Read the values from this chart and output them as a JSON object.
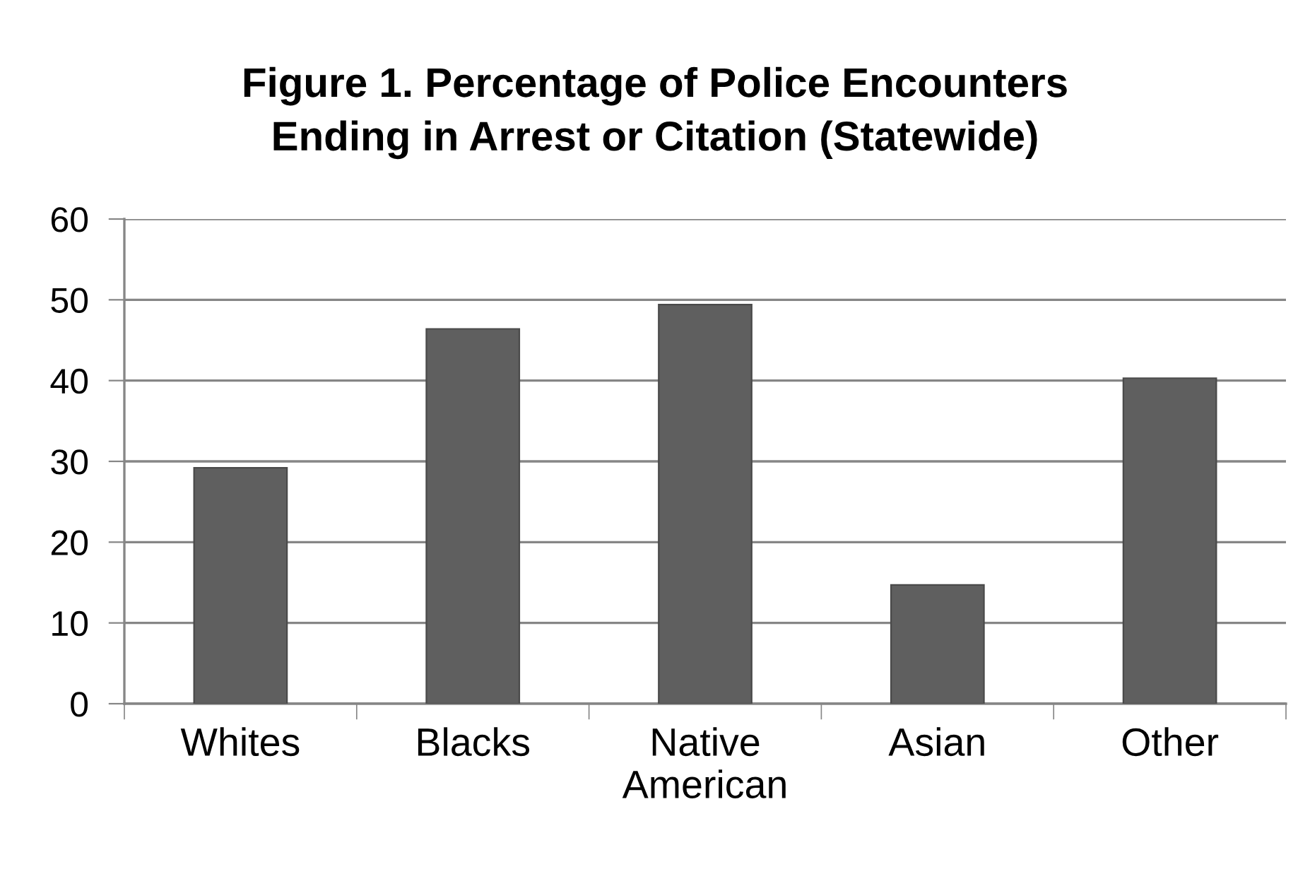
{
  "chart_data": {
    "type": "bar",
    "title": "Figure 1. Percentage of Police Encounters\nEnding in Arrest or Citation (Statewide)",
    "categories": [
      "Whites",
      "Blacks",
      "Native\nAmerican",
      "Asian",
      "Other"
    ],
    "values": [
      29.2,
      46.4,
      49.4,
      14.7,
      40.3
    ],
    "color": "#5f5f5f",
    "ylim": [
      0,
      60
    ],
    "yticks": [
      0,
      10,
      20,
      30,
      40,
      50,
      60
    ],
    "grid": "y",
    "legend": false
  }
}
